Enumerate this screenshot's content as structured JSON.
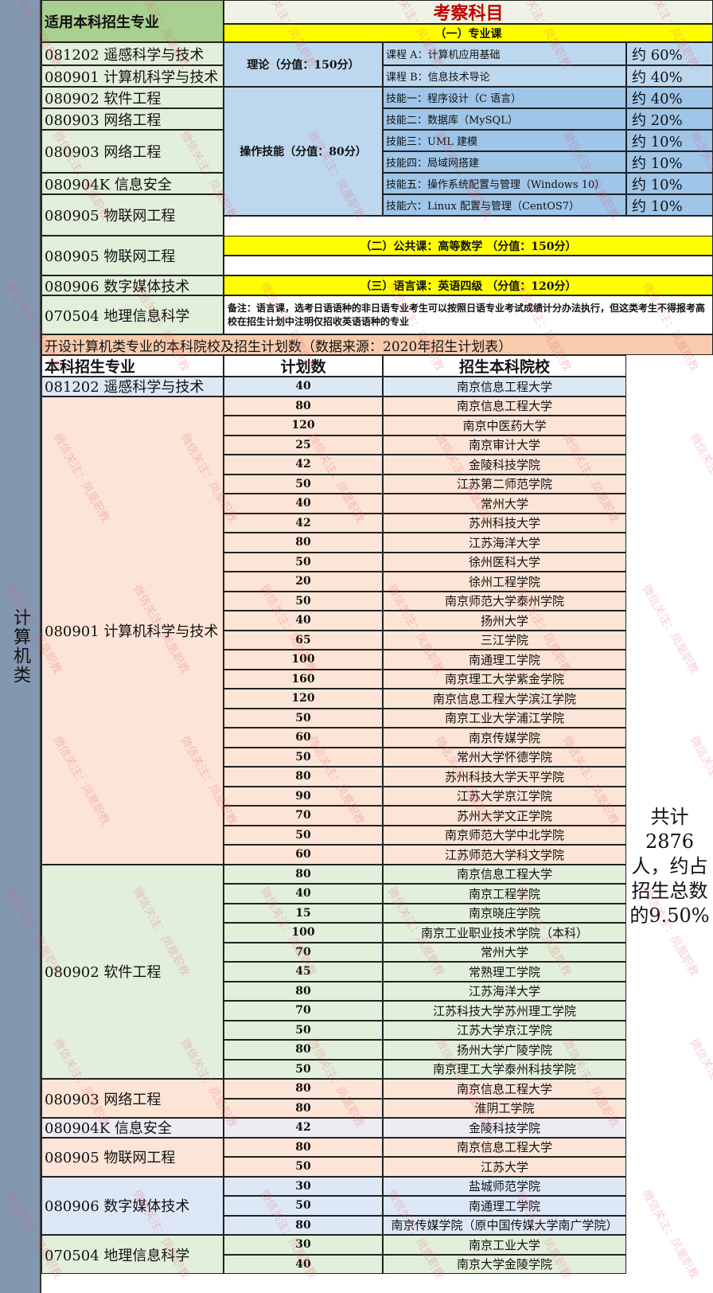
{
  "category": "计算机类",
  "top": {
    "col_header": "适用本科招生专业",
    "subjects_title": "考察科目",
    "section1": "（一）专业课",
    "theory": "理论（分值：150分）",
    "skills": "操作技能（分值：80分）",
    "courses": [
      {
        "name": "课程 A：计算机应用基础",
        "pct": "约 60%"
      },
      {
        "name": "课程 B：信息技术导论",
        "pct": "约 40%"
      },
      {
        "name": "技能一：程序设计（C 语言）",
        "pct": "约 40%"
      },
      {
        "name": "技能二：数据库（MySQL）",
        "pct": "约 20%"
      },
      {
        "name": "技能三：UML 建模",
        "pct": "约 10%"
      },
      {
        "name": "技能四：局域网搭建",
        "pct": "约 10%"
      },
      {
        "name": "技能五：操作系统配置与管理（Windows 10）",
        "pct": "约 10%"
      },
      {
        "name": "技能六：Linux 配置与管理（CentOS7）",
        "pct": "约 10%"
      }
    ],
    "majors": [
      "081202 遥感科学与技术",
      "080901 计算机科学与技术",
      "080902 软件工程",
      "080903 网络工程",
      "080903 网络工程",
      "080904K 信息安全",
      "080905 物联网工程",
      "080905 物联网工程",
      "080906 数字媒体技术",
      "070504 地理信息科学"
    ],
    "section2": "（二）公共课：高等数学 （分值：150分）",
    "section3": "（三）语言课：英语四级 （分值：120分）",
    "note": "备注：语言课，选考日语语种的非日语专业考生可以按照日语专业考试成绩计分办法执行，但这类考生不得报考高校在招生计划中注明仅招收英语语种的专业"
  },
  "banner": "开设计算机类专业的本科院校及招生计划数（数据来源：2020年招生计划表）",
  "headers": {
    "major": "本科招生专业",
    "plan": "计划数",
    "school": "招生本科院校"
  },
  "total": "共计2876人，约占招生总数的9.50%",
  "colors": {
    "leftbar": "#8497b0",
    "yellow": "#ffff00",
    "green": "#e2efda",
    "blue": "#bdd7ee",
    "pink": "#fce4d6",
    "orange": "#f8cbad",
    "header_green": "#a9d08e"
  },
  "groups": [
    {
      "major": "081202 遥感科学与技术",
      "color": "#dde8f7",
      "rows": [
        [
          "40",
          "南京信息工程大学"
        ]
      ]
    },
    {
      "major": "080901 计算机科学与技术",
      "color": "#fce4d6",
      "rows": [
        [
          "80",
          "南京信息工程大学"
        ],
        [
          "120",
          "南京中医药大学"
        ],
        [
          "25",
          "南京审计大学"
        ],
        [
          "42",
          "金陵科技学院"
        ],
        [
          "50",
          "江苏第二师范学院"
        ],
        [
          "40",
          "常州大学"
        ],
        [
          "42",
          "苏州科技大学"
        ],
        [
          "80",
          "江苏海洋大学"
        ],
        [
          "50",
          "徐州医科大学"
        ],
        [
          "20",
          "徐州工程学院"
        ],
        [
          "50",
          "南京师范大学泰州学院"
        ],
        [
          "40",
          "扬州大学"
        ],
        [
          "65",
          "三江学院"
        ],
        [
          "100",
          "南通理工学院"
        ],
        [
          "160",
          "南京理工大学紫金学院"
        ],
        [
          "120",
          "南京信息工程大学滨江学院"
        ],
        [
          "50",
          "南京工业大学浦江学院"
        ],
        [
          "60",
          "南京传媒学院"
        ],
        [
          "50",
          "常州大学怀德学院"
        ],
        [
          "80",
          "苏州科技大学天平学院"
        ],
        [
          "90",
          "江苏大学京江学院"
        ],
        [
          "70",
          "苏州大学文正学院"
        ],
        [
          "50",
          "南京师范大学中北学院"
        ],
        [
          "60",
          "江苏师范大学科文学院"
        ]
      ]
    },
    {
      "major": "080902 软件工程",
      "color": "#e2efda",
      "rows": [
        [
          "80",
          "南京信息工程大学"
        ],
        [
          "40",
          "南京工程学院"
        ],
        [
          "15",
          "南京晓庄学院"
        ],
        [
          "100",
          "南京工业职业技术学院（本科）"
        ],
        [
          "70",
          "常州大学"
        ],
        [
          "45",
          "常熟理工学院"
        ],
        [
          "80",
          "江苏海洋大学"
        ],
        [
          "70",
          "江苏科技大学苏州理工学院"
        ],
        [
          "50",
          "江苏大学京江学院"
        ],
        [
          "80",
          "扬州大学广陵学院"
        ],
        [
          "50",
          "南京理工大学泰州科技学院"
        ]
      ]
    },
    {
      "major": "080903 网络工程",
      "color": "#fce4d6",
      "rows": [
        [
          "80",
          "南京信息工程大学"
        ],
        [
          "80",
          "淮阴工学院"
        ]
      ]
    },
    {
      "major": "080904K 信息安全",
      "color": "#ececf2",
      "rows": [
        [
          "42",
          "金陵科技学院"
        ]
      ]
    },
    {
      "major": "080905 物联网工程",
      "color": "#fce4d6",
      "rows": [
        [
          "80",
          "南京信息工程大学"
        ],
        [
          "50",
          "江苏大学"
        ]
      ]
    },
    {
      "major": "080906 数字媒体技术",
      "color": "#dde8f7",
      "rows": [
        [
          "30",
          "盐城师范学院"
        ],
        [
          "50",
          "南通理工学院"
        ],
        [
          "80",
          "南京传媒学院（原中国传媒大学南广学院）"
        ]
      ]
    },
    {
      "major": "070504 地理信息科学",
      "color": "#e2efda",
      "rows": [
        [
          "30",
          "南京工业大学"
        ],
        [
          "40",
          "南京大学金陵学院"
        ]
      ]
    }
  ],
  "watermark": "微信关注：凤凰职教"
}
